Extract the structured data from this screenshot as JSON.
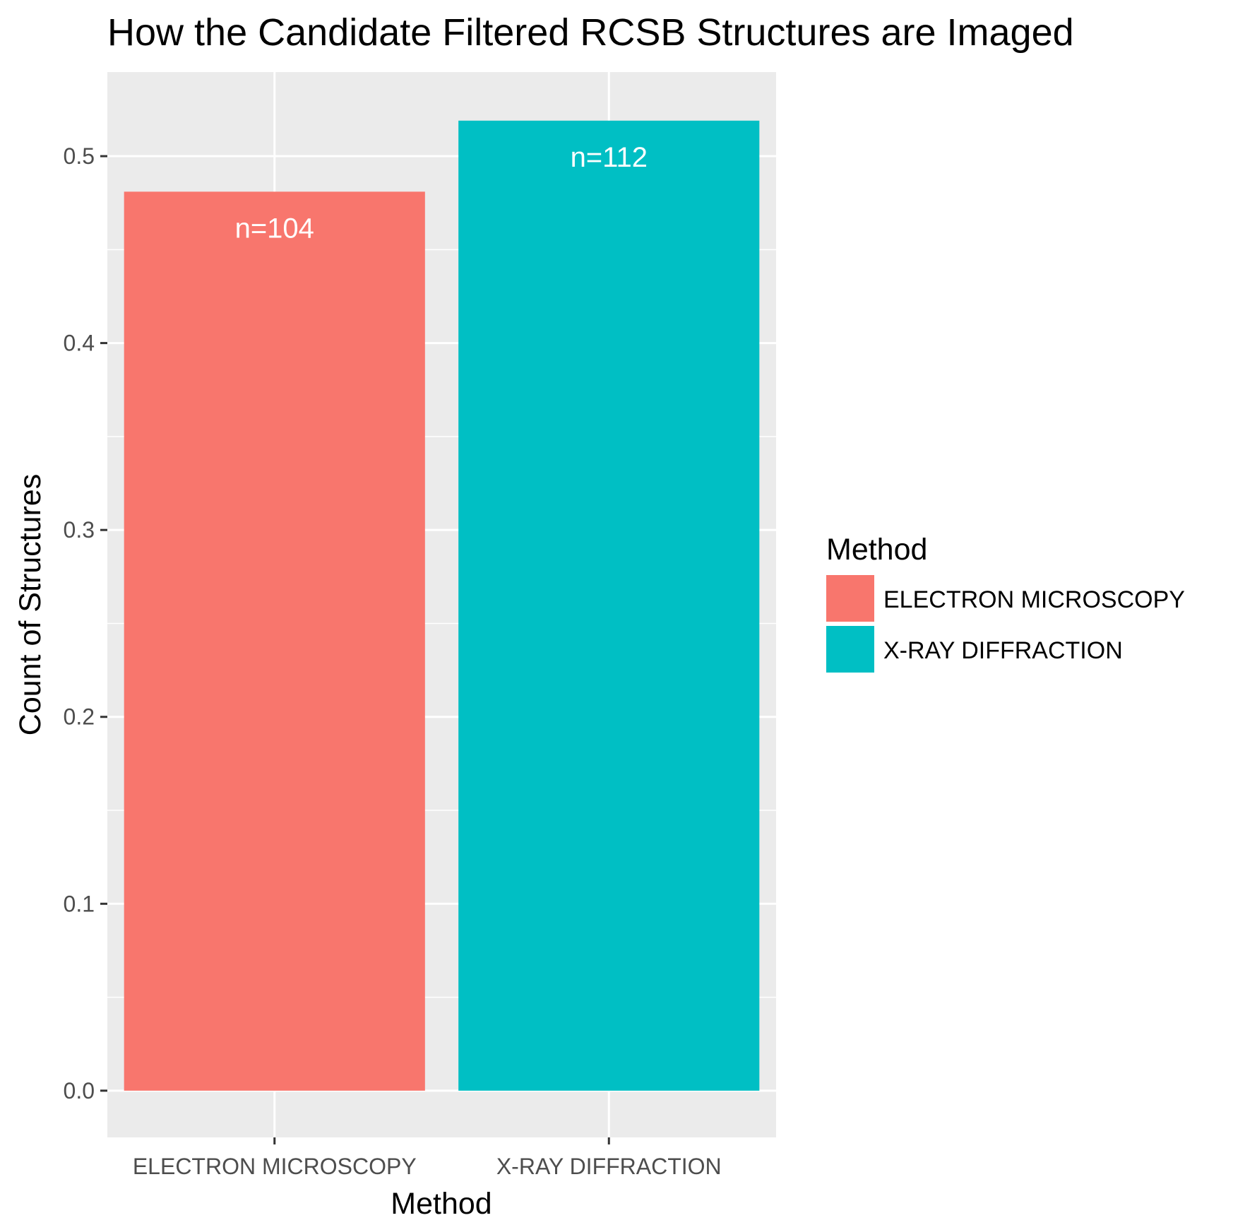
{
  "chart_data": {
    "type": "bar",
    "title": "How the Candidate Filtered RCSB Structures are Imaged",
    "xlabel": "Method",
    "ylabel": "Count of Structures",
    "categories": [
      "ELECTRON MICROSCOPY",
      "X-RAY DIFFRACTION"
    ],
    "values": [
      0.481,
      0.519
    ],
    "data_labels": [
      "n=104",
      "n=112"
    ],
    "colors": [
      "#F8766D",
      "#00BFC4"
    ],
    "ylim": [
      -0.025,
      0.545
    ],
    "yticks": [
      0.0,
      0.1,
      0.2,
      0.3,
      0.4,
      0.5
    ],
    "ytick_labels": [
      "0.0",
      "0.1",
      "0.2",
      "0.3",
      "0.4",
      "0.5"
    ],
    "grid": true,
    "legend": {
      "title": "Method",
      "position": "right",
      "entries": [
        {
          "label": "ELECTRON MICROSCOPY",
          "color": "#F8766D"
        },
        {
          "label": "X-RAY DIFFRACTION",
          "color": "#00BFC4"
        }
      ]
    },
    "panel_background": "#EBEBEB",
    "grid_color": "#FFFFFF"
  }
}
